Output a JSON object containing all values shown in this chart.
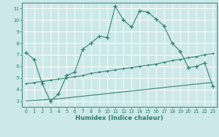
{
  "xlabel": "Humidex (Indice chaleur)",
  "bg_color": "#cce8e8",
  "grid_color": "#ffffff",
  "line_color": "#2e7d6e",
  "xlim": [
    -0.5,
    23.5
  ],
  "ylim": [
    2.5,
    11.5
  ],
  "xticks": [
    0,
    1,
    2,
    3,
    4,
    5,
    6,
    7,
    8,
    9,
    10,
    11,
    12,
    13,
    14,
    15,
    16,
    17,
    18,
    19,
    20,
    21,
    22,
    23
  ],
  "yticks": [
    3,
    4,
    5,
    6,
    7,
    8,
    9,
    10,
    11
  ],
  "line1_x": [
    0,
    1,
    2,
    3,
    4,
    5,
    6,
    7,
    8,
    9,
    10,
    11,
    12,
    13,
    14,
    15,
    16,
    17,
    18,
    19,
    20,
    21,
    22,
    23
  ],
  "line1_y": [
    7.2,
    6.6,
    4.5,
    3.0,
    3.6,
    5.2,
    5.5,
    7.5,
    8.0,
    8.6,
    8.5,
    11.2,
    10.0,
    9.4,
    10.8,
    10.7,
    10.1,
    9.5,
    8.0,
    7.3,
    5.9,
    6.0,
    6.3,
    4.3
  ],
  "line2_x": [
    0,
    1,
    2,
    3,
    4,
    5,
    6,
    7,
    8,
    9,
    10,
    11,
    12,
    13,
    14,
    15,
    16,
    17,
    18,
    19,
    20,
    21,
    22,
    23
  ],
  "line2_y": [
    4.5,
    4.6,
    4.7,
    4.8,
    4.9,
    5.0,
    5.1,
    5.2,
    5.4,
    5.5,
    5.6,
    5.7,
    5.8,
    5.9,
    6.0,
    6.1,
    6.2,
    6.35,
    6.5,
    6.6,
    6.75,
    6.85,
    7.0,
    7.1
  ],
  "line3_x": [
    0,
    1,
    2,
    3,
    4,
    5,
    6,
    7,
    8,
    9,
    10,
    11,
    12,
    13,
    14,
    15,
    16,
    17,
    18,
    19,
    20,
    21,
    22,
    23
  ],
  "line3_y": [
    3.0,
    3.05,
    3.1,
    3.15,
    3.2,
    3.27,
    3.35,
    3.42,
    3.5,
    3.57,
    3.65,
    3.72,
    3.8,
    3.87,
    3.95,
    4.02,
    4.1,
    4.17,
    4.25,
    4.32,
    4.4,
    4.47,
    4.55,
    4.6
  ],
  "tick_fontsize": 5.0,
  "xlabel_fontsize": 6.5
}
